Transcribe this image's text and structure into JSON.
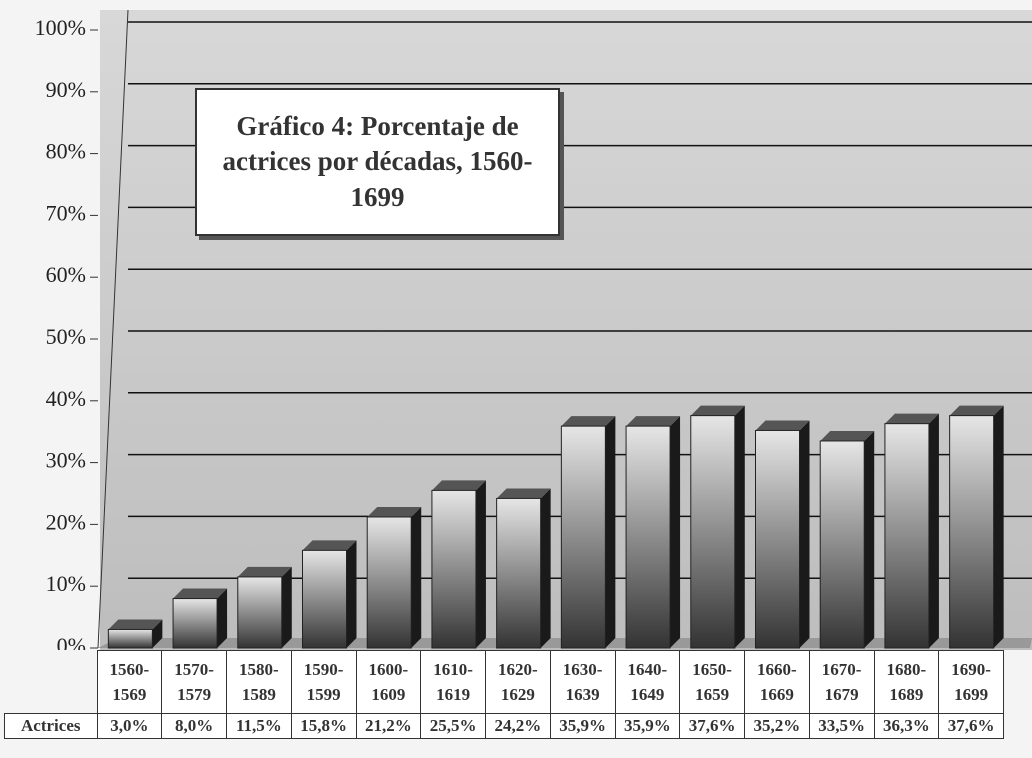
{
  "chart_data": {
    "type": "bar",
    "title": "Gráfico 4: Porcentaje de actrices por décadas, 1560-1699",
    "categories": [
      "1560-1569",
      "1570-1579",
      "1580-1589",
      "1590-1599",
      "1600-1609",
      "1610-1619",
      "1620-1629",
      "1630-1639",
      "1640-1649",
      "1650-1659",
      "1660-1669",
      "1670-1679",
      "1680-1689",
      "1690-1699"
    ],
    "series": [
      {
        "name": "Actrices",
        "color": "#8a8a8a",
        "values": [
          3.0,
          8.0,
          11.5,
          15.8,
          21.2,
          25.5,
          24.2,
          35.9,
          35.9,
          37.6,
          35.2,
          33.5,
          36.3,
          37.6
        ],
        "value_labels": [
          "3,0%",
          "8,0%",
          "11,5%",
          "15,8%",
          "21,2%",
          "25,5%",
          "24,2%",
          "35,9%",
          "35,9%",
          "37,6%",
          "35,2%",
          "33,5%",
          "36,3%",
          "37,6%"
        ]
      }
    ],
    "ylim": [
      0,
      100
    ],
    "yticks": [
      {
        "value": 0,
        "label": "0%"
      },
      {
        "value": 10,
        "label": "10%"
      },
      {
        "value": 20,
        "label": "20%"
      },
      {
        "value": 30,
        "label": "30%"
      },
      {
        "value": 40,
        "label": "40%"
      },
      {
        "value": 50,
        "label": "50%"
      },
      {
        "value": 60,
        "label": "60%"
      },
      {
        "value": 70,
        "label": "70%"
      },
      {
        "value": 80,
        "label": "80%"
      },
      {
        "value": 90,
        "label": "90%"
      },
      {
        "value": 100,
        "label": "100%"
      }
    ],
    "grid": true
  }
}
